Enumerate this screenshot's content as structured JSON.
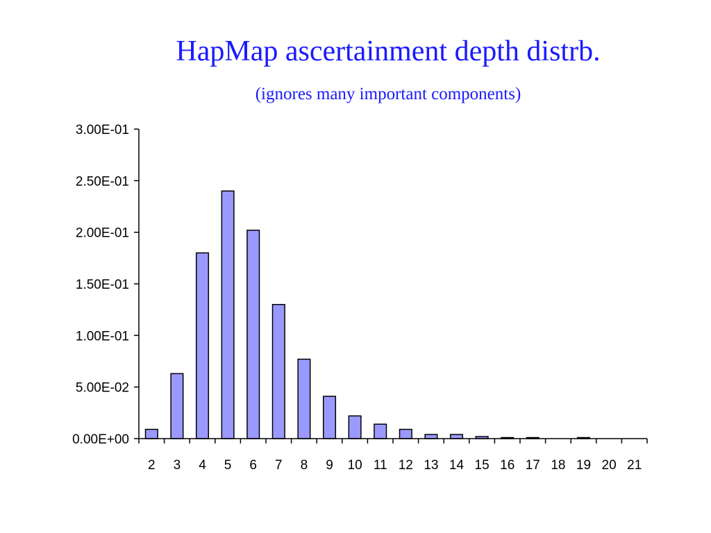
{
  "slide": {
    "title": "HapMap ascertainment depth distrb.",
    "subtitle": "(ignores many important components)"
  },
  "colors": {
    "title": "#1a1aff",
    "bar_fill": "#9999ff",
    "bar_stroke": "#000000",
    "axis": "#000000"
  },
  "chart_data": {
    "type": "bar",
    "title": "",
    "xlabel": "",
    "ylabel": "",
    "categories": [
      "2",
      "3",
      "4",
      "5",
      "6",
      "7",
      "8",
      "9",
      "10",
      "11",
      "12",
      "13",
      "14",
      "15",
      "16",
      "17",
      "18",
      "19",
      "20",
      "21"
    ],
    "values": [
      0.009,
      0.063,
      0.18,
      0.24,
      0.202,
      0.13,
      0.077,
      0.041,
      0.022,
      0.014,
      0.009,
      0.004,
      0.004,
      0.002,
      0.001,
      0.001,
      0,
      0.001,
      0,
      0
    ],
    "ylim": [
      0,
      0.3
    ],
    "yticks": [
      0,
      0.05,
      0.1,
      0.15,
      0.2,
      0.25,
      0.3
    ],
    "ytick_labels": [
      "0.00E+00",
      "5.00E-02",
      "1.00E-01",
      "1.50E-01",
      "2.00E-01",
      "2.50E-01",
      "3.00E-01"
    ],
    "grid": false,
    "legend": "none"
  }
}
